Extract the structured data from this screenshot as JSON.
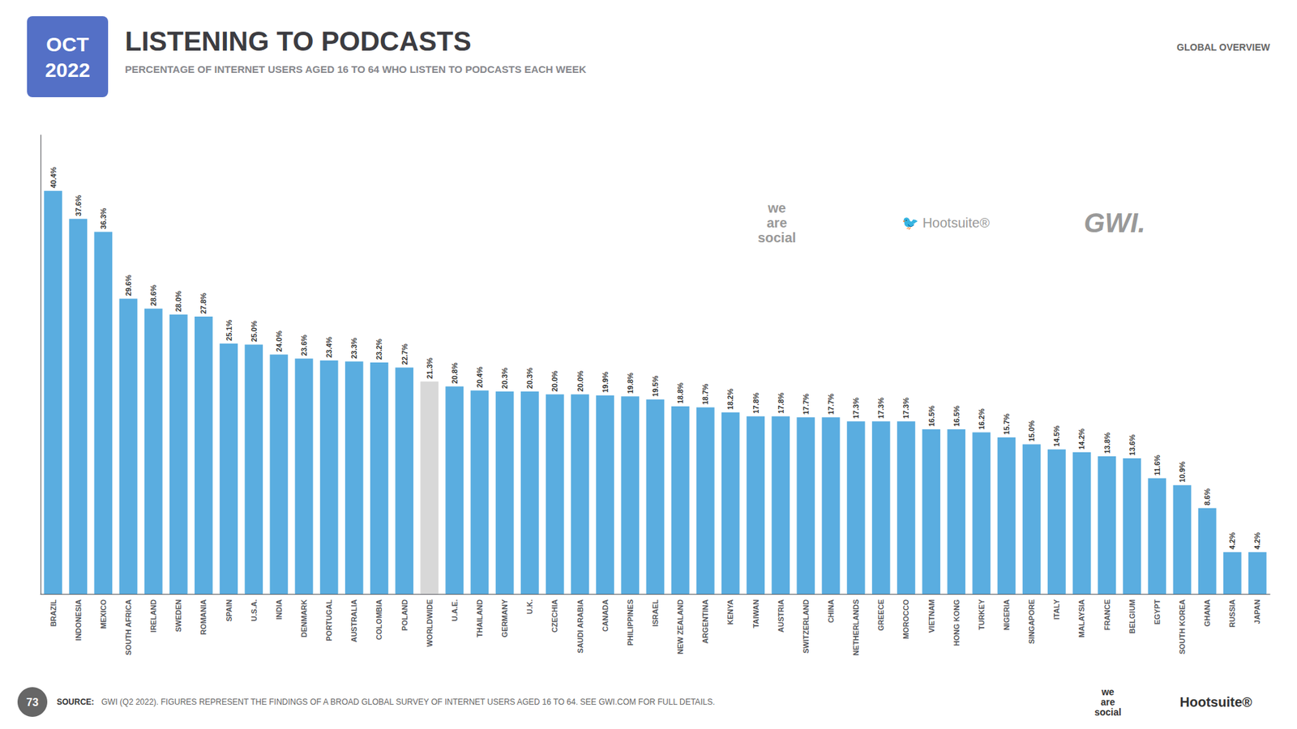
{
  "chart_data": {
    "type": "bar",
    "title": "LISTENING TO PODCASTS",
    "subtitle": "PERCENTAGE OF INTERNET USERS AGED 16 TO 64 WHO LISTEN TO PODCASTS EACH WEEK",
    "categories": [
      "BRAZIL",
      "INDONESIA",
      "MEXICO",
      "SOUTH AFRICA",
      "IRELAND",
      "SWEDEN",
      "ROMANIA",
      "SPAIN",
      "U.S.A.",
      "INDIA",
      "DENMARK",
      "PORTUGAL",
      "AUSTRALIA",
      "COLOMBIA",
      "POLAND",
      "WORLDWIDE",
      "U.A.E.",
      "THAILAND",
      "GERMANY",
      "U.K.",
      "CZECHIA",
      "SAUDI ARABIA",
      "CANADA",
      "PHILIPPINES",
      "ISRAEL",
      "NEW ZEALAND",
      "ARGENTINA",
      "KENYA",
      "TAIWAN",
      "AUSTRIA",
      "SWITZERLAND",
      "CHINA",
      "NETHERLANDS",
      "GREECE",
      "MOROCCO",
      "VIETNAM",
      "HONG KONG",
      "TURKEY",
      "NIGERIA",
      "SINGAPORE",
      "ITALY",
      "MALAYSIA",
      "FRANCE",
      "BELGIUM",
      "EGYPT",
      "SOUTH KOREA",
      "GHANA",
      "RUSSIA",
      "JAPAN"
    ],
    "values": [
      40.4,
      37.6,
      36.3,
      29.6,
      28.6,
      28.0,
      27.8,
      25.1,
      25.0,
      24.0,
      23.6,
      23.4,
      23.3,
      23.2,
      22.7,
      21.3,
      20.8,
      20.4,
      20.3,
      20.3,
      20.0,
      20.0,
      19.9,
      19.8,
      19.5,
      18.8,
      18.7,
      18.2,
      17.8,
      17.8,
      17.7,
      17.7,
      17.3,
      17.3,
      17.3,
      16.5,
      16.5,
      16.2,
      15.7,
      15.0,
      14.5,
      14.2,
      13.8,
      13.6,
      11.6,
      10.9,
      8.6,
      4.2,
      4.2
    ],
    "value_labels": [
      "40.4%",
      "37.6%",
      "36.3%",
      "29.6%",
      "28.6%",
      "28.0%",
      "27.8%",
      "25.1%",
      "25.0%",
      "24.0%",
      "23.6%",
      "23.4%",
      "23.3%",
      "23.2%",
      "22.7%",
      "21.3%",
      "20.8%",
      "20.4%",
      "20.3%",
      "20.3%",
      "20.0%",
      "20.0%",
      "19.9%",
      "19.8%",
      "19.5%",
      "18.8%",
      "18.7%",
      "18.2%",
      "17.8%",
      "17.8%",
      "17.7%",
      "17.7%",
      "17.3%",
      "17.3%",
      "17.3%",
      "16.5%",
      "16.5%",
      "16.2%",
      "15.7%",
      "15.0%",
      "14.5%",
      "14.2%",
      "13.8%",
      "13.6%",
      "11.6%",
      "10.9%",
      "8.6%",
      "4.2%",
      "4.2%"
    ],
    "colors": [
      "#5aade0",
      "#5aade0",
      "#5aade0",
      "#5aade0",
      "#5aade0",
      "#5aade0",
      "#5aade0",
      "#5aade0",
      "#5aade0",
      "#5aade0",
      "#5aade0",
      "#5aade0",
      "#5aade0",
      "#5aade0",
      "#5aade0",
      "#d8d8d8",
      "#5aade0",
      "#5aade0",
      "#5aade0",
      "#5aade0",
      "#5aade0",
      "#5aade0",
      "#5aade0",
      "#5aade0",
      "#5aade0",
      "#5aade0",
      "#5aade0",
      "#5aade0",
      "#5aade0",
      "#5aade0",
      "#5aade0",
      "#5aade0",
      "#5aade0",
      "#5aade0",
      "#5aade0",
      "#5aade0",
      "#5aade0",
      "#5aade0",
      "#5aade0",
      "#5aade0",
      "#5aade0",
      "#5aade0",
      "#5aade0",
      "#5aade0",
      "#5aade0",
      "#5aade0",
      "#5aade0",
      "#5aade0",
      "#5aade0"
    ],
    "ylim": [
      0,
      46
    ],
    "data_labels": true,
    "tick_labels": "x",
    "grid": false,
    "annotations": [
      "OCT\n2022",
      "GLOBAL OVERVIEW",
      "73",
      "we\nare\nsocial",
      "🐦 Hootsuite®",
      "GWI.",
      "SOURCE:",
      "GWI (Q2 2022). FIGURES REPRESENT THE FINDINGS OF A BROAD GLOBAL SURVEY OF INTERNET USERS AGED 16 TO 64. SEE GWI.COM FOR FULL DETAILS.",
      "we\nare\nsocial",
      "Hootsuite®"
    ]
  }
}
